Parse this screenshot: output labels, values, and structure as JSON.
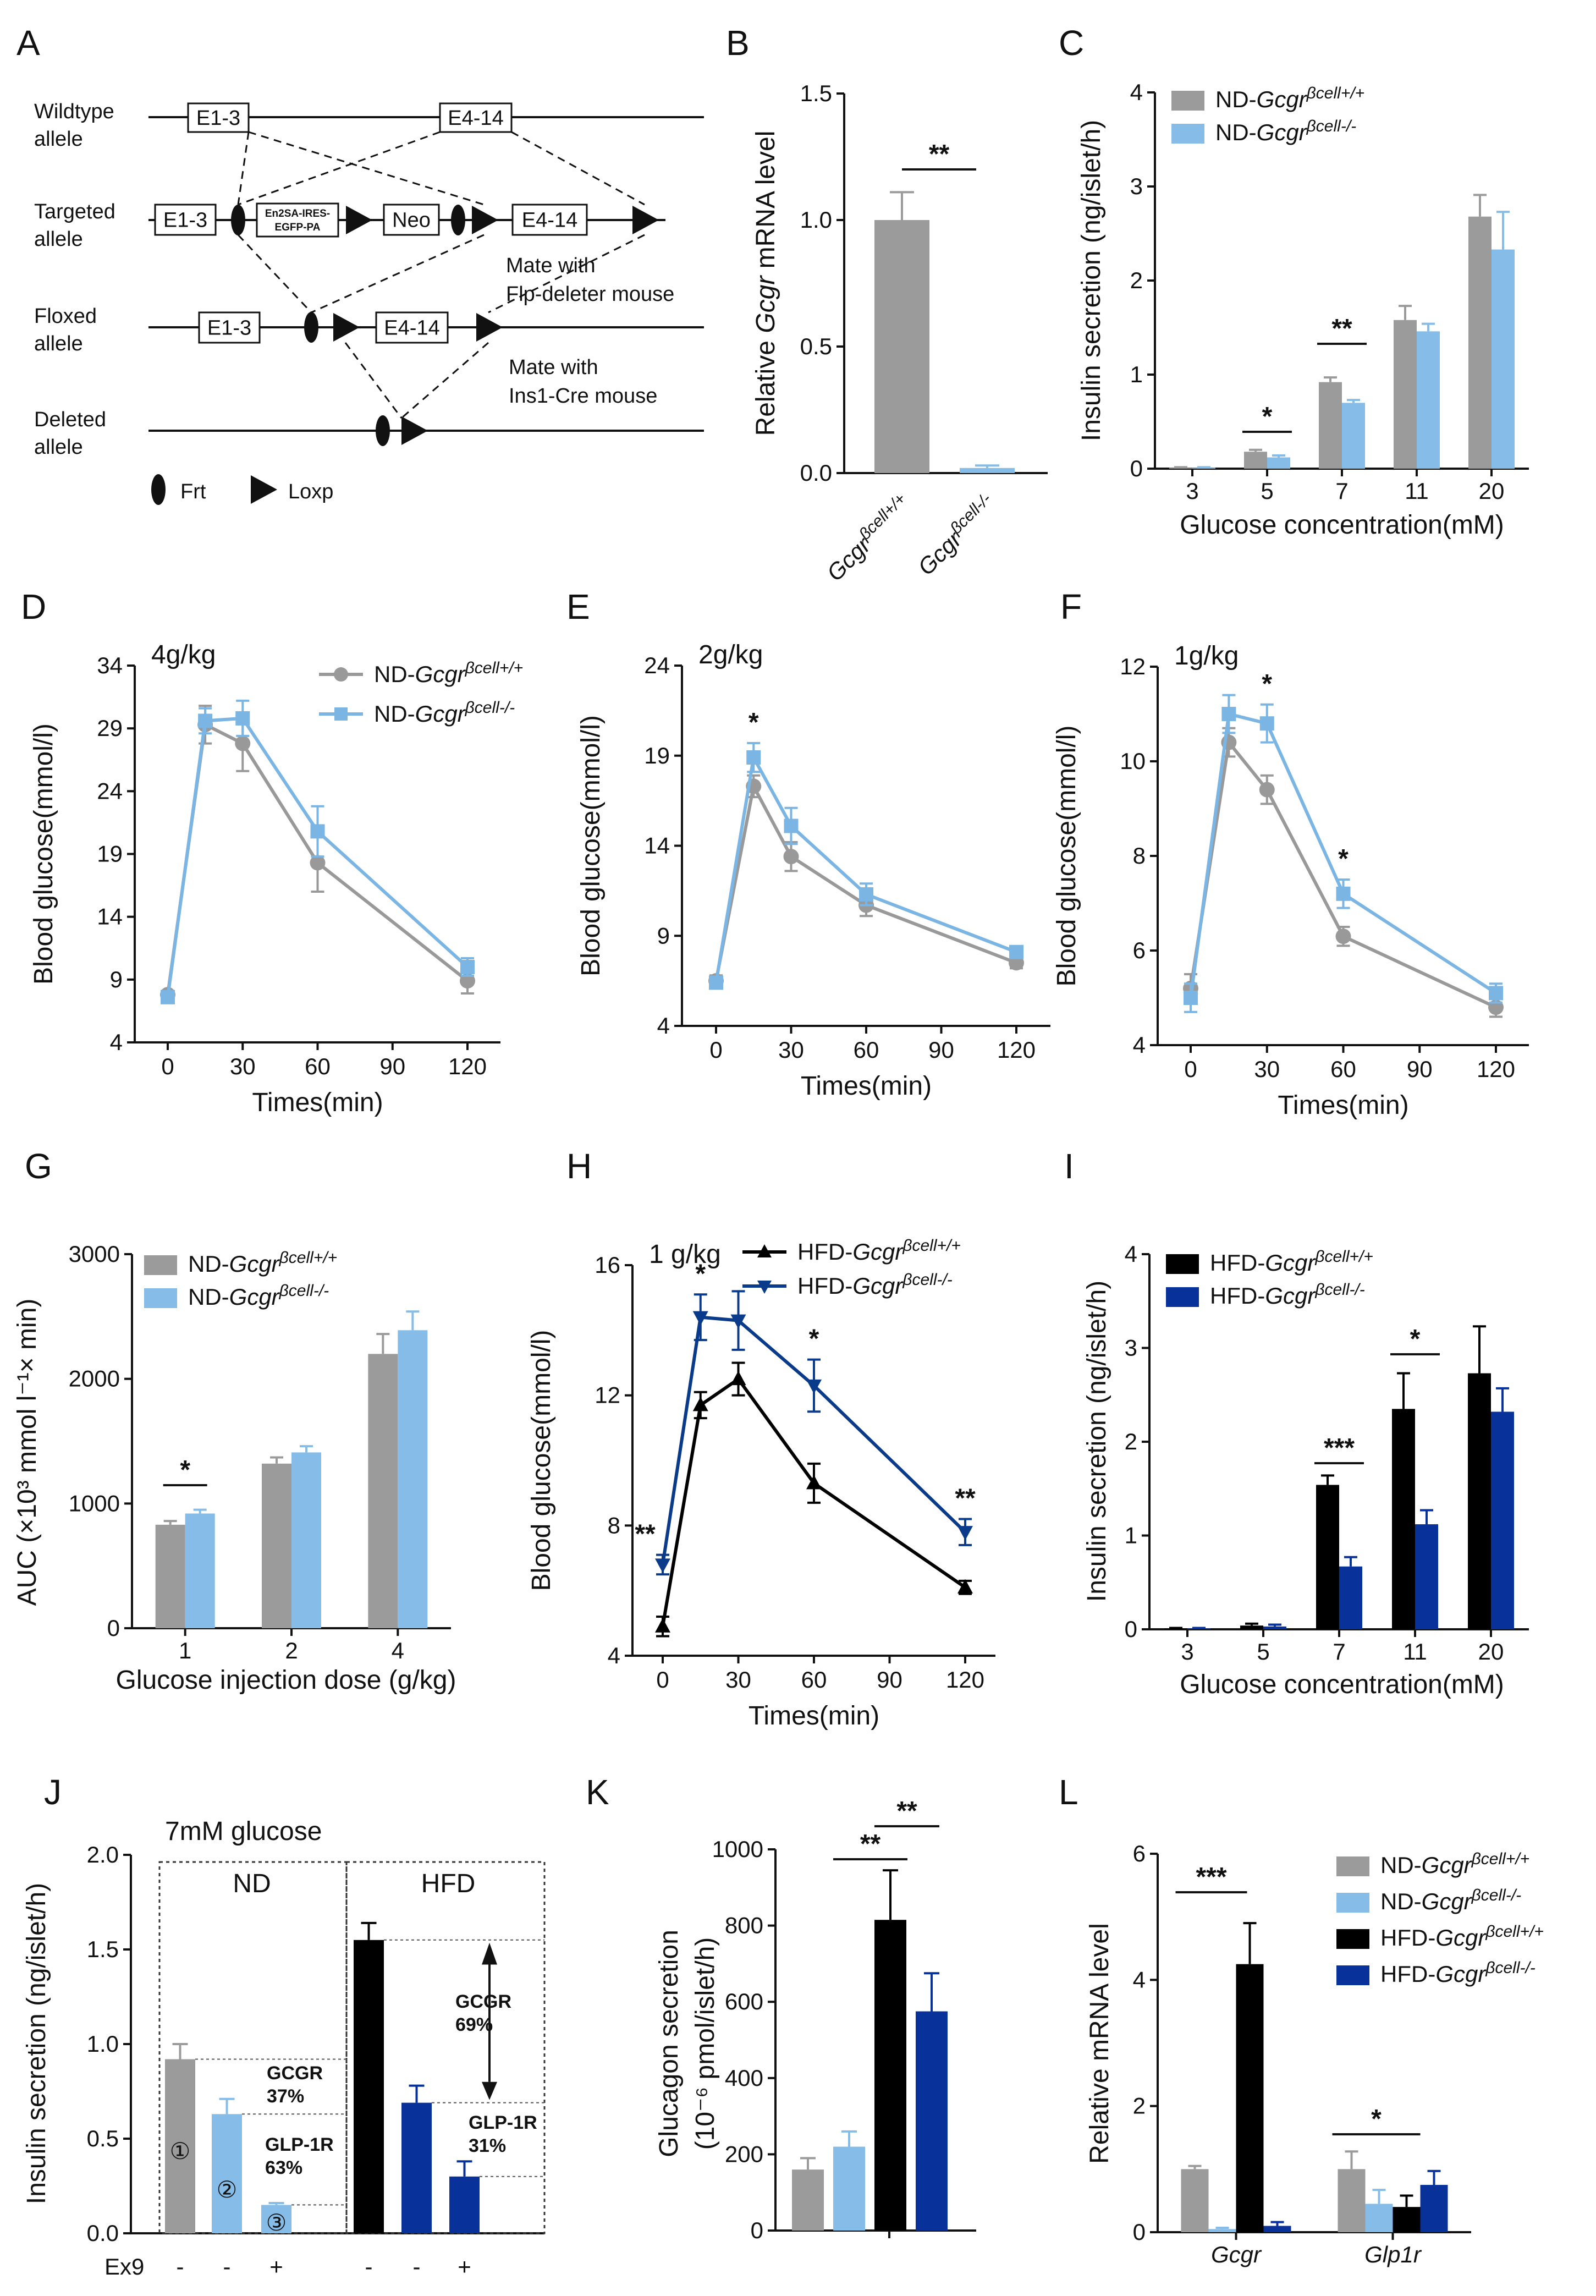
{
  "colors": {
    "nd_wt": "#9b9b9b",
    "nd_ko": "#86bde8",
    "hfd_wt": "#000000",
    "hfd_ko": "#08319a",
    "line_wt": "#999999",
    "line_ko": "#7ab5e3",
    "hfd_line_ko": "#0a3a8a"
  },
  "legend": {
    "nd_wt": "ND-Gcgr",
    "nd_ko": "ND-Gcgr",
    "hfd_wt": "HFD-Gcgr",
    "hfd_ko": "HFD-Gcgr",
    "sup_wt": "βcell+/+",
    "sup_ko": "βcell-/-"
  },
  "panelA": {
    "label": "A",
    "wildtype": [
      "Wildtype",
      "allele"
    ],
    "targeted": [
      "Targeted",
      "allele"
    ],
    "floxed": [
      "Floxed",
      "allele"
    ],
    "deleted": [
      "Deleted",
      "allele"
    ],
    "e13": "E1-3",
    "e414": "E4-14",
    "en2sa": [
      "En2SA-IRES-",
      "EGFP-PA"
    ],
    "neo": "Neo",
    "mate_flp": [
      "Mate with",
      "Flp-deleter mouse"
    ],
    "mate_ins": [
      "Mate with",
      "Ins1-Cre mouse"
    ],
    "frt": "Frt",
    "loxp": "Loxp"
  },
  "chart_data": [
    {
      "panel": "B",
      "type": "bar",
      "ylabel_pre": "Relative ",
      "ylabel_it": "Gcgr",
      "ylabel_post": " mRNA level",
      "categories": [
        "Gcgr",
        "Gcgr"
      ],
      "category_sup": [
        "βcell+/+",
        "βcell-/-"
      ],
      "values": [
        1.0,
        0.02
      ],
      "errors": [
        0.11,
        0.01
      ],
      "ylim": [
        0,
        1.5
      ],
      "yticks": [
        "0.0",
        "0.5",
        "1.0",
        "1.5"
      ],
      "sig": "**"
    },
    {
      "panel": "C",
      "type": "bar",
      "ylabel": "Insulin secretion (ng/islet/h)",
      "xlabel": "Glucose concentration(mM)",
      "categories": [
        "3",
        "5",
        "7",
        "11",
        "20"
      ],
      "series": [
        {
          "name": "ND-Gcgr βcell+/+",
          "values": [
            0.01,
            0.18,
            0.92,
            1.58,
            2.68
          ],
          "errors": [
            0.005,
            0.02,
            0.05,
            0.15,
            0.23
          ]
        },
        {
          "name": "ND-Gcgr βcell-/-",
          "values": [
            0.01,
            0.12,
            0.7,
            1.46,
            2.33
          ],
          "errors": [
            0.005,
            0.02,
            0.03,
            0.08,
            0.4
          ]
        }
      ],
      "ylim": [
        0,
        4
      ],
      "yticks": [
        "0",
        "1",
        "2",
        "3",
        "4"
      ],
      "sig": [
        {
          "cat": "5",
          "text": "*"
        },
        {
          "cat": "7",
          "text": "**"
        }
      ]
    },
    {
      "panel": "D",
      "type": "line",
      "dose": "4g/kg",
      "ylabel": "Blood glucose(mmol/l)",
      "xlabel": "Times(min)",
      "x": [
        0,
        15,
        30,
        60,
        120
      ],
      "xticks": [
        "0",
        "30",
        "60",
        "90",
        "120"
      ],
      "series": [
        {
          "name": "ND-Gcgr βcell+/+",
          "values": [
            7.8,
            29.3,
            27.8,
            18.3,
            8.9
          ],
          "errors": [
            0.3,
            1.5,
            2.2,
            2.3,
            1.0
          ]
        },
        {
          "name": "ND-Gcgr βcell-/-",
          "values": [
            7.6,
            29.6,
            29.8,
            20.8,
            10.0
          ],
          "errors": [
            0.3,
            1.0,
            1.4,
            2.0,
            0.7
          ]
        }
      ],
      "ylim": [
        4,
        34
      ],
      "yticks": [
        "4",
        "9",
        "14",
        "19",
        "24",
        "29",
        "34"
      ]
    },
    {
      "panel": "E",
      "type": "line",
      "dose": "2g/kg",
      "ylabel": "Blood glucose(mmol/l)",
      "xlabel": "Times(min)",
      "x": [
        0,
        15,
        30,
        60,
        120
      ],
      "xticks": [
        "0",
        "30",
        "60",
        "90",
        "120"
      ],
      "series": [
        {
          "name": "ND-Gcgr βcell+/+",
          "values": [
            6.5,
            17.3,
            13.4,
            10.7,
            7.5
          ],
          "errors": [
            0.3,
            0.6,
            0.8,
            0.6,
            0.3
          ]
        },
        {
          "name": "ND-Gcgr βcell-/-",
          "values": [
            6.4,
            18.9,
            15.1,
            11.3,
            8.1
          ],
          "errors": [
            0.3,
            0.8,
            1.0,
            0.6,
            0.3
          ]
        }
      ],
      "ylim": [
        4,
        24
      ],
      "yticks": [
        "4",
        "9",
        "14",
        "19",
        "24"
      ],
      "sig": [
        {
          "x": 15,
          "text": "*"
        }
      ]
    },
    {
      "panel": "F",
      "type": "line",
      "dose": "1g/kg",
      "ylabel": "Blood glucose(mmol/l)",
      "xlabel": "Times(min)",
      "x": [
        0,
        15,
        30,
        60,
        120
      ],
      "xticks": [
        "0",
        "30",
        "60",
        "90",
        "120"
      ],
      "series": [
        {
          "name": "ND-Gcgr βcell+/+",
          "values": [
            5.2,
            10.4,
            9.4,
            6.3,
            4.8
          ],
          "errors": [
            0.3,
            0.3,
            0.3,
            0.2,
            0.2
          ]
        },
        {
          "name": "ND-Gcgr βcell-/-",
          "values": [
            5.0,
            11.0,
            10.8,
            7.2,
            5.1
          ],
          "errors": [
            0.3,
            0.4,
            0.4,
            0.3,
            0.2
          ]
        }
      ],
      "ylim": [
        4,
        12
      ],
      "yticks": [
        "4",
        "6",
        "8",
        "10",
        "12"
      ],
      "sig": [
        {
          "x": 30,
          "text": "*"
        },
        {
          "x": 60,
          "text": "*"
        }
      ]
    },
    {
      "panel": "G",
      "type": "bar",
      "ylabel": "AUC (×10³ mmol l⁻¹× min)",
      "xlabel": "Glucose injection dose (g/kg)",
      "categories": [
        "1",
        "2",
        "4"
      ],
      "series": [
        {
          "name": "ND-Gcgr βcell+/+",
          "values": [
            830,
            1320,
            2200
          ],
          "errors": [
            30,
            50,
            160
          ]
        },
        {
          "name": "ND-Gcgr βcell-/-",
          "values": [
            920,
            1410,
            2390
          ],
          "errors": [
            30,
            50,
            150
          ]
        }
      ],
      "ylim": [
        0,
        3000
      ],
      "yticks": [
        "0",
        "1000",
        "2000",
        "3000"
      ],
      "sig": [
        {
          "cat": "1",
          "text": "*"
        }
      ]
    },
    {
      "panel": "H",
      "type": "line",
      "dose": "1 g/kg",
      "ylabel": "Blood glucose(mmol/l)",
      "xlabel": "Times(min)",
      "x": [
        0,
        15,
        30,
        60,
        120
      ],
      "xticks": [
        "0",
        "30",
        "60",
        "90",
        "120"
      ],
      "series": [
        {
          "name": "HFD-Gcgr βcell+/+",
          "values": [
            4.9,
            11.7,
            12.5,
            9.3,
            6.1
          ],
          "errors": [
            0.3,
            0.4,
            0.5,
            0.6,
            0.2
          ]
        },
        {
          "name": "HFD-Gcgr βcell-/-",
          "values": [
            6.8,
            14.4,
            14.3,
            12.3,
            7.8
          ],
          "errors": [
            0.3,
            0.7,
            0.9,
            0.8,
            0.4
          ]
        }
      ],
      "ylim": [
        4,
        16
      ],
      "yticks": [
        "4",
        "8",
        "12",
        "16"
      ],
      "sig": [
        {
          "x": 0,
          "text": "**"
        },
        {
          "x": 15,
          "text": "*"
        },
        {
          "x": 60,
          "text": "*"
        },
        {
          "x": 120,
          "text": "**"
        }
      ]
    },
    {
      "panel": "I",
      "type": "bar",
      "ylabel": "Insulin secretion (ng/islet/h)",
      "xlabel": "Glucose concentration(mM)",
      "categories": [
        "3",
        "5",
        "7",
        "11",
        "20"
      ],
      "series": [
        {
          "name": "HFD-Gcgr βcell+/+",
          "values": [
            0.01,
            0.04,
            1.54,
            2.35,
            2.73
          ],
          "errors": [
            0.005,
            0.02,
            0.1,
            0.38,
            0.5
          ]
        },
        {
          "name": "HFD-Gcgr βcell-/-",
          "values": [
            0.01,
            0.03,
            0.67,
            1.12,
            2.32
          ],
          "errors": [
            0.005,
            0.02,
            0.1,
            0.15,
            0.25
          ]
        }
      ],
      "ylim": [
        0,
        4
      ],
      "yticks": [
        "0",
        "1",
        "2",
        "3",
        "4"
      ],
      "sig": [
        {
          "cat": "7",
          "text": "***"
        },
        {
          "cat": "11",
          "text": "*"
        }
      ]
    },
    {
      "panel": "J",
      "type": "bar",
      "title": "7mM glucose",
      "ylabel": "Insulin secretion (ng/islet/h)",
      "groups": [
        "ND",
        "HFD"
      ],
      "ex9_label": "Ex9",
      "ex9": [
        "-",
        "-",
        "+",
        "-",
        "-",
        "+"
      ],
      "values": [
        0.92,
        0.63,
        0.15,
        1.55,
        0.69,
        0.3
      ],
      "errors": [
        0.08,
        0.08,
        0.01,
        0.09,
        0.09,
        0.08
      ],
      "markers": [
        "①",
        "②",
        "③"
      ],
      "annot": [
        [
          "GCGR",
          "37%"
        ],
        [
          "GLP-1R",
          "63%"
        ],
        [
          "GCGR",
          "69%"
        ],
        [
          "GLP-1R",
          "31%"
        ]
      ],
      "ylim": [
        0,
        2.0
      ],
      "yticks": [
        "0.0",
        "0.5",
        "1.0",
        "1.5",
        "2.0"
      ]
    },
    {
      "panel": "K",
      "type": "bar",
      "ylabel": "Glucagon secretion",
      "ylabel2": "(10⁻⁶ pmol/islet/h)",
      "values": [
        160,
        220,
        815,
        575
      ],
      "errors": [
        30,
        40,
        130,
        100
      ],
      "ylim": [
        0,
        1000
      ],
      "yticks": [
        "0",
        "200",
        "400",
        "600",
        "800",
        "1000"
      ],
      "sig": [
        "**",
        "**"
      ]
    },
    {
      "panel": "L",
      "type": "bar",
      "ylabel": "Relative mRNA level",
      "categories": [
        "Gcgr",
        "Glp1r"
      ],
      "series": [
        {
          "name": "ND-Gcgr βcell+/+",
          "values": [
            1.0,
            1.0
          ],
          "errors": [
            0.05,
            0.28
          ]
        },
        {
          "name": "ND-Gcgr βcell-/-",
          "values": [
            0.05,
            0.45
          ],
          "errors": [
            0.02,
            0.22
          ]
        },
        {
          "name": "HFD-Gcgr βcell+/+",
          "values": [
            4.25,
            0.4
          ],
          "errors": [
            0.65,
            0.18
          ]
        },
        {
          "name": "HFD-Gcgr βcell-/-",
          "values": [
            0.1,
            0.75
          ],
          "errors": [
            0.06,
            0.22
          ]
        }
      ],
      "ylim": [
        0,
        6
      ],
      "yticks": [
        "0",
        "2",
        "4",
        "6"
      ],
      "sig": [
        "***",
        "*"
      ]
    }
  ]
}
